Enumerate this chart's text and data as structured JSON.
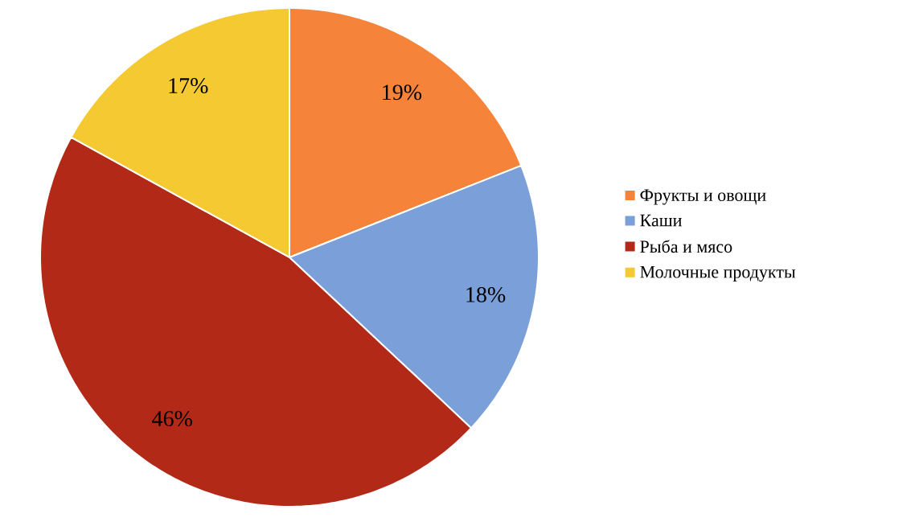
{
  "chart_data": {
    "type": "pie",
    "categories": [
      "Фрукты и овощи",
      "Каши",
      "Рыба и мясо",
      "Молочные продукты"
    ],
    "values": [
      19,
      18,
      46,
      17
    ],
    "colors": [
      "#f5843a",
      "#7b9fd8",
      "#b22a17",
      "#f5c932"
    ],
    "value_labels": [
      "19%",
      "18%",
      "46%",
      "17%"
    ],
    "legend": "right"
  }
}
